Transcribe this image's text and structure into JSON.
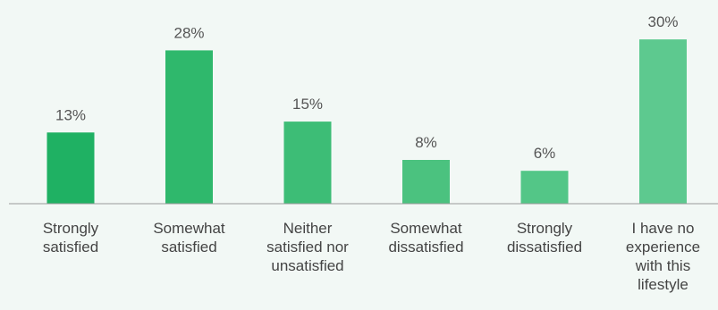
{
  "chart_data": {
    "type": "bar",
    "title": "",
    "xlabel": "",
    "ylabel": "",
    "unit": "%",
    "ylim": [
      0,
      30
    ],
    "grid": false,
    "categories": [
      "Strongly satisfied",
      "Somewhat satisfied",
      "Neither satisfied nor unsatisfied",
      "Somewhat dissatisfied",
      "Strongly dissatisfied",
      "I have no experience with this lifestyle"
    ],
    "category_lines": [
      [
        "Strongly",
        "satisfied"
      ],
      [
        "Somewhat",
        "satisfied"
      ],
      [
        "Neither",
        "satisfied nor",
        "unsatisfied"
      ],
      [
        "Somewhat",
        "dissatisfied"
      ],
      [
        "Strongly",
        "dissatisfied"
      ],
      [
        "I have no",
        "experience",
        "with this",
        "lifestyle"
      ]
    ],
    "values": [
      13,
      28,
      15,
      8,
      6,
      30
    ],
    "data_labels": [
      "13%",
      "28%",
      "15%",
      "8%",
      "6%",
      "30%"
    ],
    "colors": [
      "#1fb163",
      "#2fb86c",
      "#3dbd76",
      "#4bc27f",
      "#53c687",
      "#5dc98f"
    ]
  }
}
